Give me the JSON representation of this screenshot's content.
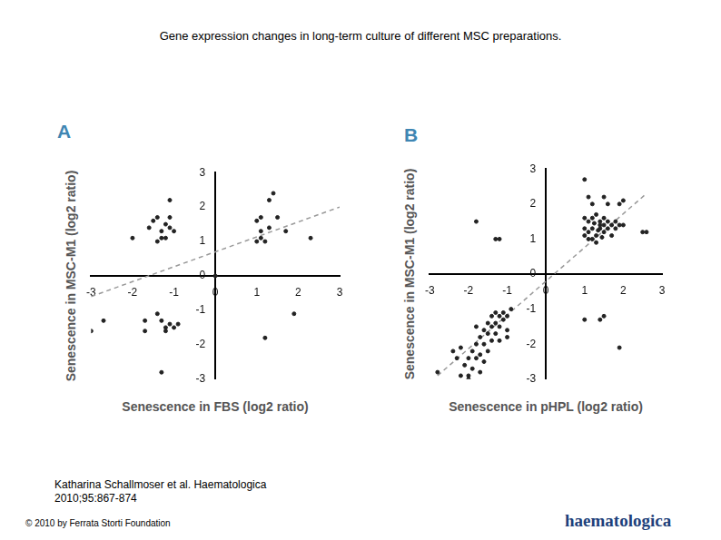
{
  "title": "Gene expression changes in long-term culture of different MSC preparations.",
  "citation": "Katharina Schallmoser et al. Haematologica 2010;95:867-874",
  "copyright": "© 2010 by Ferrata Storti Foundation",
  "logo": "haematologica",
  "chart_data": [
    {
      "type": "scatter",
      "panel_label": "A",
      "xlabel": "Senescence in FBS (log2 ratio)",
      "ylabel": "Senescence in MSC-M1 (log2 ratio)",
      "xlim": [
        -3,
        3
      ],
      "ylim": [
        -3,
        3
      ],
      "xticks": [
        -3,
        -2,
        -1,
        0,
        1,
        2,
        3
      ],
      "yticks": [
        -3,
        -2,
        -1,
        0,
        1,
        2,
        3
      ],
      "grid": false,
      "series": [
        {
          "type": "scatter",
          "color": "#222222",
          "marker": "circle",
          "x": [
            -1.6,
            -1.5,
            -1.4,
            -1.3,
            -1.2,
            -1.2,
            -1.1,
            -1.1,
            -1.1,
            -1.0,
            -1.3,
            -2.0,
            -1.4,
            1.0,
            1.1,
            1.1,
            1.2,
            1.3,
            1.3,
            1.4,
            1.5,
            1.1,
            1.7,
            2.3,
            1.0,
            -3.0,
            -2.7,
            -1.7,
            -1.7,
            -1.4,
            -1.3,
            -1.2,
            -1.1,
            -1.0,
            -1.2,
            -1.3,
            -0.9,
            1.2,
            1.9,
            0.0
          ],
          "y": [
            1.4,
            1.6,
            1.7,
            1.3,
            1.5,
            1.1,
            2.2,
            1.7,
            1.4,
            1.3,
            1.1,
            1.1,
            1.0,
            1.6,
            1.7,
            1.1,
            1.0,
            1.4,
            2.2,
            2.4,
            1.7,
            1.3,
            1.3,
            1.1,
            1.0,
            -1.6,
            -1.3,
            -1.3,
            -1.6,
            -1.1,
            -1.3,
            -1.6,
            -1.4,
            -1.5,
            -1.5,
            -2.8,
            -1.4,
            -1.8,
            -1.1,
            0.0
          ]
        },
        {
          "type": "line",
          "line_style": "dashed",
          "color": "#999999",
          "x": [
            -3.0,
            3.0
          ],
          "y": [
            -0.6,
            2.0
          ]
        }
      ]
    },
    {
      "type": "scatter",
      "panel_label": "B",
      "xlabel": "Senescence in pHPL (log2 ratio)",
      "ylabel": "Senescence in MSC-M1 (log2 ratio)",
      "xlim": [
        -3,
        3
      ],
      "ylim": [
        -3,
        3
      ],
      "xticks": [
        -3,
        -2,
        -1,
        0,
        1,
        2,
        3
      ],
      "yticks": [
        -3,
        -2,
        -1,
        0,
        1,
        2,
        3
      ],
      "grid": false,
      "series": [
        {
          "type": "scatter",
          "color": "#222222",
          "marker": "circle",
          "x": [
            -1.8,
            -1.3,
            -1.2,
            1.0,
            1.1,
            1.2,
            1.5,
            1.6,
            1.9,
            2.0,
            1.0,
            1.1,
            1.2,
            1.3,
            1.4,
            1.5,
            1.6,
            1.7,
            1.8,
            1.0,
            1.1,
            1.2,
            1.3,
            1.4,
            1.5,
            1.6,
            1.7,
            1.8,
            1.9,
            2.0,
            1.1,
            1.2,
            1.3,
            1.4,
            1.5,
            2.5,
            2.6,
            1.0,
            1.25,
            1.35,
            1.45,
            1.0,
            1.4,
            1.5,
            1.9,
            -2.8,
            -2.4,
            -2.3,
            -2.2,
            -2.1,
            -2.0,
            -2.0,
            -1.9,
            -1.9,
            -1.8,
            -1.8,
            -1.7,
            -1.7,
            -1.6,
            -1.6,
            -1.5,
            -1.5,
            -1.5,
            -1.4,
            -1.4,
            -1.4,
            -1.3,
            -1.3,
            -1.3,
            -1.2,
            -1.2,
            -1.1,
            -1.1,
            -1.0,
            -1.0,
            -0.9,
            -1.2,
            -1.6,
            -2.0,
            -1.8,
            -1.0,
            -2.2,
            -1.7
          ],
          "y": [
            1.5,
            1.0,
            1.0,
            2.7,
            2.2,
            2.0,
            2.2,
            2.0,
            2.0,
            2.1,
            1.6,
            1.5,
            1.6,
            1.7,
            1.5,
            1.6,
            1.5,
            1.4,
            1.5,
            1.3,
            1.2,
            1.3,
            1.1,
            1.3,
            1.2,
            1.3,
            1.1,
            1.3,
            1.4,
            1.4,
            1.0,
            1.0,
            0.9,
            1.4,
            1.4,
            1.2,
            1.2,
            1.1,
            1.45,
            1.25,
            1.05,
            -1.3,
            -1.3,
            -1.2,
            -2.1,
            -2.8,
            -2.2,
            -2.4,
            -2.1,
            -2.6,
            -2.9,
            -3.0,
            -2.2,
            -2.7,
            -2.0,
            -2.4,
            -1.8,
            -2.3,
            -1.6,
            -2.0,
            -1.4,
            -1.7,
            -2.2,
            -1.2,
            -1.5,
            -1.9,
            -1.1,
            -1.4,
            -1.7,
            -1.2,
            -1.5,
            -1.1,
            -1.3,
            -1.2,
            -1.6,
            -1.0,
            -1.9,
            -2.5,
            -2.4,
            -1.5,
            -1.8,
            -2.9,
            -2.8
          ]
        },
        {
          "type": "line",
          "line_style": "dashed",
          "color": "#999999",
          "x": [
            -2.8,
            2.6
          ],
          "y": [
            -2.9,
            2.3
          ]
        }
      ]
    }
  ]
}
